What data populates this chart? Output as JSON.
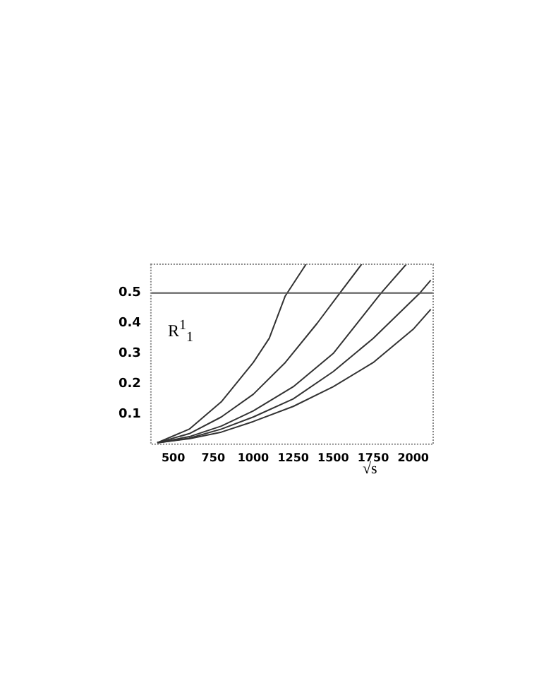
{
  "chart_data": {
    "type": "line",
    "xlabel": "√s",
    "annotations": [
      "R$^{1}$$_{1}$"
    ],
    "xlim": [
      360,
      2125
    ],
    "xticks": [
      500,
      750,
      1000,
      1250,
      1500,
      1750,
      2000
    ],
    "ylim": [
      0,
      0.595
    ],
    "yticks": [
      0.1,
      0.2,
      0.3,
      0.4,
      0.5
    ],
    "grid": false,
    "legend": false,
    "marker": "none",
    "line_style": "solid",
    "ref_lines": [
      {
        "axis": "y",
        "value": 0.5,
        "color": "#555555"
      }
    ],
    "series": [
      {
        "color": "#333333",
        "x": [
          400,
          600,
          800,
          1000,
          1100,
          1200,
          1330
        ],
        "values": [
          0.005,
          0.05,
          0.14,
          0.27,
          0.35,
          0.49,
          0.595
        ]
      },
      {
        "color": "#333333",
        "x": [
          400,
          600,
          800,
          1000,
          1200,
          1400,
          1542,
          1678
        ],
        "values": [
          0.005,
          0.035,
          0.09,
          0.165,
          0.27,
          0.4,
          0.5,
          0.595
        ]
      },
      {
        "color": "#333333",
        "x": [
          400,
          600,
          800,
          1000,
          1250,
          1500,
          1800,
          1957
        ],
        "values": [
          0.005,
          0.025,
          0.06,
          0.11,
          0.19,
          0.3,
          0.5,
          0.595
        ]
      },
      {
        "color": "#333333",
        "x": [
          400,
          600,
          800,
          1000,
          1250,
          1500,
          1750,
          2042,
          2110
        ],
        "values": [
          0.005,
          0.02,
          0.05,
          0.09,
          0.15,
          0.24,
          0.35,
          0.5,
          0.542
        ]
      },
      {
        "color": "#333333",
        "x": [
          400,
          600,
          800,
          1000,
          1250,
          1500,
          1750,
          2000,
          2110
        ],
        "values": [
          0.005,
          0.018,
          0.04,
          0.075,
          0.125,
          0.19,
          0.27,
          0.38,
          0.446
        ]
      }
    ]
  }
}
